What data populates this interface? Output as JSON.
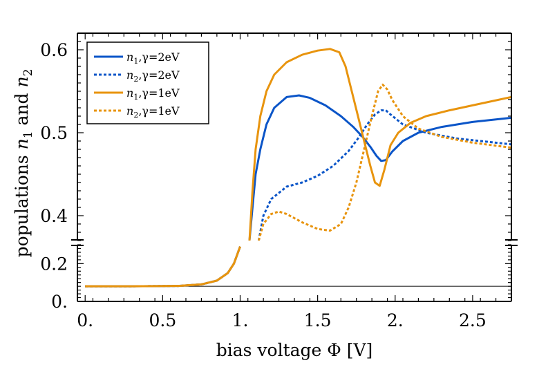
{
  "chart_data": {
    "type": "line",
    "title": "",
    "xlabel": "bias voltage Φ [V]",
    "ylabel": "populations n₁ and n₂",
    "ylabel_parts": {
      "prefix": "populations ",
      "n1": "n",
      "sub1": "1",
      "mid": " and ",
      "n2": "n",
      "sub2": "2"
    },
    "xlim": [
      -0.05,
      2.75
    ],
    "x_ticks": [
      0,
      0.5,
      1,
      1.5,
      2,
      2.5
    ],
    "x_tick_labels": [
      "0.",
      "0.5",
      "1.",
      "1.5",
      "2.",
      "2.5"
    ],
    "y_ticks_upper": [
      0.4,
      0.5,
      0.6
    ],
    "y_tick_labels_upper": [
      "0.4",
      "0.5",
      "0.6"
    ],
    "y_ticks_lower": [
      0,
      0.2
    ],
    "y_tick_labels_lower": [
      "0.",
      "0.2"
    ],
    "ylim_lower": [
      0,
      0.3
    ],
    "ylim_upper": [
      0.37,
      0.62
    ],
    "axis_break": "between 0.3 and 0.37",
    "legend_position": "top-left",
    "colors": {
      "blue": "#0b55c8",
      "orange": "#e8940e"
    },
    "reference_line": {
      "y": 0.08,
      "color": "#000000"
    },
    "series": [
      {
        "name": "n1, γ=2eV",
        "label_var": "n",
        "label_sub": "1",
        "label_rest": ",γ=2eV",
        "color": "#0b55c8",
        "dash": "solid",
        "x": [
          0,
          0.3,
          0.6,
          0.75,
          0.85,
          0.92,
          0.96,
          1.0,
          1.04,
          1.06,
          1.08,
          1.1,
          1.13,
          1.17,
          1.22,
          1.3,
          1.38,
          1.45,
          1.55,
          1.65,
          1.73,
          1.79,
          1.84,
          1.88,
          1.91,
          1.94,
          1.98,
          2.05,
          2.15,
          2.3,
          2.5,
          2.75
        ],
        "y": [
          0.08,
          0.08,
          0.082,
          0.09,
          0.11,
          0.15,
          0.2,
          0.29,
          null,
          0.37,
          0.41,
          0.45,
          0.48,
          0.51,
          0.53,
          0.543,
          0.545,
          0.542,
          0.533,
          0.52,
          0.507,
          0.495,
          0.483,
          0.472,
          0.466,
          0.467,
          0.477,
          0.49,
          0.5,
          0.507,
          0.513,
          0.518
        ]
      },
      {
        "name": "n2, γ=2eV",
        "label_var": "n",
        "label_sub": "2",
        "label_rest": ",γ=2eV",
        "color": "#0b55c8",
        "dash": "dotted",
        "x": [
          0,
          0.3,
          0.6,
          0.75,
          0.85,
          0.92,
          0.96,
          1.0,
          1.1,
          1.12,
          1.15,
          1.2,
          1.3,
          1.4,
          1.5,
          1.6,
          1.7,
          1.76,
          1.82,
          1.87,
          1.91,
          1.94,
          1.97,
          2.05,
          2.2,
          2.4,
          2.6,
          2.75
        ],
        "y": [
          0.08,
          0.08,
          0.082,
          0.09,
          0.11,
          0.15,
          0.2,
          0.29,
          null,
          0.37,
          0.4,
          0.42,
          0.435,
          0.44,
          0.448,
          0.46,
          0.478,
          0.493,
          0.51,
          0.522,
          0.527,
          0.527,
          0.522,
          0.51,
          0.5,
          0.493,
          0.489,
          0.486
        ]
      },
      {
        "name": "n1, γ=1eV",
        "label_var": "n",
        "label_sub": "1",
        "label_rest": ",γ=1eV",
        "color": "#e8940e",
        "dash": "solid",
        "x": [
          0,
          0.3,
          0.6,
          0.75,
          0.85,
          0.92,
          0.96,
          1.0,
          1.04,
          1.06,
          1.08,
          1.1,
          1.13,
          1.17,
          1.22,
          1.3,
          1.4,
          1.5,
          1.58,
          1.64,
          1.68,
          1.72,
          1.76,
          1.8,
          1.84,
          1.87,
          1.9,
          1.93,
          1.97,
          2.02,
          2.1,
          2.2,
          2.35,
          2.5,
          2.75
        ],
        "y": [
          0.08,
          0.08,
          0.082,
          0.09,
          0.11,
          0.15,
          0.2,
          0.29,
          null,
          0.37,
          0.43,
          0.48,
          0.52,
          0.55,
          0.57,
          0.585,
          0.594,
          0.599,
          0.601,
          0.597,
          0.58,
          0.55,
          0.52,
          0.49,
          0.46,
          0.44,
          0.436,
          0.455,
          0.485,
          0.5,
          0.512,
          0.52,
          0.527,
          0.533,
          0.543
        ]
      },
      {
        "name": "n2, γ=1eV",
        "label_var": "n",
        "label_sub": "2",
        "label_rest": ",γ=1eV",
        "color": "#e8940e",
        "dash": "dotted",
        "x": [
          0,
          0.3,
          0.6,
          0.75,
          0.85,
          0.92,
          0.96,
          1.0,
          1.1,
          1.12,
          1.15,
          1.2,
          1.25,
          1.3,
          1.4,
          1.5,
          1.58,
          1.65,
          1.7,
          1.75,
          1.8,
          1.85,
          1.89,
          1.92,
          1.95,
          1.98,
          2.05,
          2.15,
          2.3,
          2.5,
          2.75
        ],
        "y": [
          0.08,
          0.08,
          0.082,
          0.09,
          0.11,
          0.15,
          0.2,
          0.29,
          null,
          0.37,
          0.39,
          0.402,
          0.405,
          0.402,
          0.392,
          0.384,
          0.382,
          0.39,
          0.41,
          0.44,
          0.48,
          0.52,
          0.55,
          0.558,
          0.552,
          0.54,
          0.52,
          0.505,
          0.495,
          0.488,
          0.482
        ]
      }
    ]
  }
}
